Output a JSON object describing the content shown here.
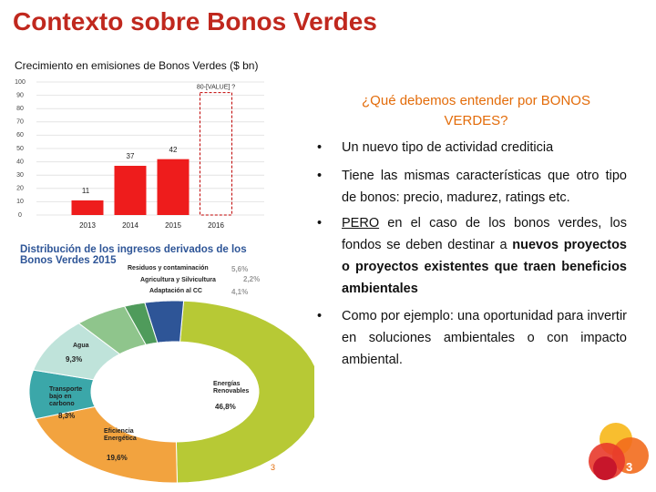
{
  "title": "Contexto sobre Bonos Verdes",
  "heading": "¿Qué debemos entender por BONOS VERDES?",
  "bullets": [
    [
      {
        "text": "Un nuevo tipo de actividad crediticia",
        "style": "plain"
      }
    ],
    [
      {
        "text": "Tiene las mismas características que otro tipo de bonos: precio, madurez, ratings etc.",
        "style": "plain"
      }
    ],
    [
      {
        "text": "PERO",
        "style": "underline"
      },
      {
        "text": " en el caso de los bonos verdes, los fondos se deben destinar a ",
        "style": "plain"
      },
      {
        "text": "nuevos proyectos o proyectos existentes que traen beneficios ambientales",
        "style": "bold"
      }
    ],
    [
      {
        "text": "Como por ejemplo: una oportunidad para invertir en soluciones ambientales o con impacto ambiental.",
        "style": "plain"
      }
    ]
  ],
  "page_marker": "3",
  "page_number": "3",
  "chart_data": [
    {
      "type": "bar",
      "title": "Crecimiento en emisiones de Bonos Verdes ($ bn)",
      "categories": [
        "2013",
        "2014",
        "2015",
        "2016"
      ],
      "values": [
        11,
        37,
        42,
        null
      ],
      "color": "#ee1c1c",
      "projection": {
        "values": [
          null,
          null,
          null,
          92
        ],
        "label": "80-[VALUE] ?",
        "color": "#c00000"
      },
      "ylim": [
        0,
        100
      ],
      "yticks": [
        0,
        10,
        20,
        30,
        40,
        50,
        60,
        70,
        80,
        90,
        100
      ],
      "grid": true
    },
    {
      "type": "pie",
      "title": "Distribución de los ingresos derivados de los Bonos Verdes 2015",
      "categories": [
        "Energías Renovables",
        "Eficiencia Energética",
        "Transporte bajo en carbono",
        "Agua",
        "Residuos y contaminación",
        "Agricultura y Silvicultura",
        "Adaptación al CC"
      ],
      "values": [
        46.8,
        19.6,
        8.3,
        9.3,
        5.6,
        2.2,
        4.1
      ],
      "value_labels": [
        "46,8%",
        "19,6%",
        "8,3%",
        "9,3%",
        "5,6%",
        "2,2%",
        "4,1%"
      ],
      "colors": [
        "#b7c935",
        "#f2a33f",
        "#3ba7a9",
        "#bfe3da",
        "#8fc58c",
        "#4f9b5b",
        "#2e5597"
      ]
    }
  ]
}
